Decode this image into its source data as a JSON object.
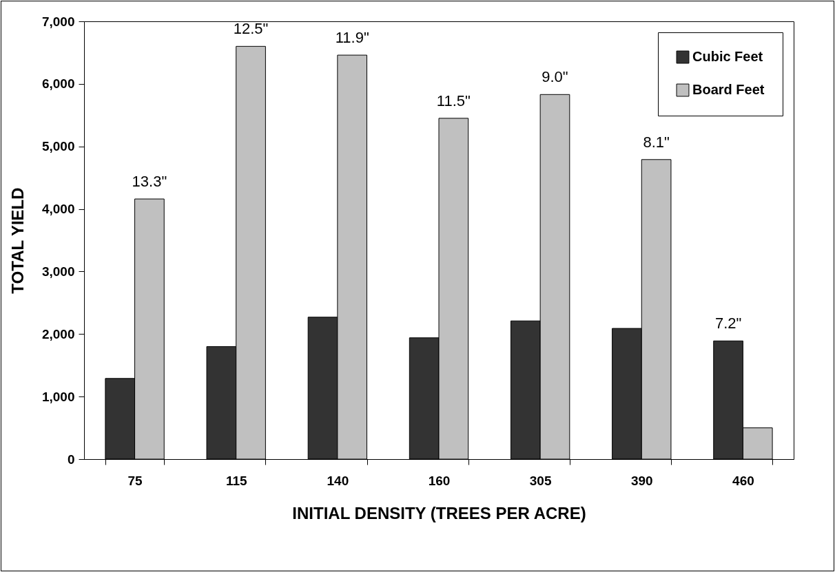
{
  "chart_data": {
    "type": "bar",
    "xlabel": "INITIAL DENSITY (TREES PER ACRE)",
    "ylabel": "TOTAL YIELD",
    "categories": [
      "75",
      "115",
      "140",
      "160",
      "305",
      "390",
      "460"
    ],
    "series": [
      {
        "name": "Cubic Feet",
        "color": "#333333",
        "values": [
          1290,
          1800,
          2270,
          1940,
          2210,
          2090,
          1890
        ]
      },
      {
        "name": "Board Feet",
        "color": "#c0c0c0",
        "values": [
          4160,
          6600,
          6460,
          5450,
          5830,
          4790,
          500
        ]
      }
    ],
    "ylim": [
      0,
      7000
    ],
    "yticks": [
      {
        "value": 0,
        "label": "0"
      },
      {
        "value": 1000,
        "label": "1,000"
      },
      {
        "value": 2000,
        "label": "2,000"
      },
      {
        "value": 3000,
        "label": "3,000"
      },
      {
        "value": 4000,
        "label": "4,000"
      },
      {
        "value": 5000,
        "label": "5,000"
      },
      {
        "value": 6000,
        "label": "6,000"
      },
      {
        "value": 7000,
        "label": "7,000"
      }
    ],
    "annotations": [
      {
        "text": "13.3\"",
        "x": "75",
        "y": 4160
      },
      {
        "text": "12.5\"",
        "x": "115",
        "y": 6600
      },
      {
        "text": "11.9\"",
        "x": "140",
        "y": 6460
      },
      {
        "text": "11.5\"",
        "x": "160",
        "y": 5450
      },
      {
        "text": "9.0\"",
        "x": "305",
        "y": 5830
      },
      {
        "text": "8.1\"",
        "x": "390",
        "y": 4790
      },
      {
        "text": "7.2\"",
        "x": "460",
        "y": 1890
      }
    ],
    "grid": false,
    "legend": "top right"
  }
}
